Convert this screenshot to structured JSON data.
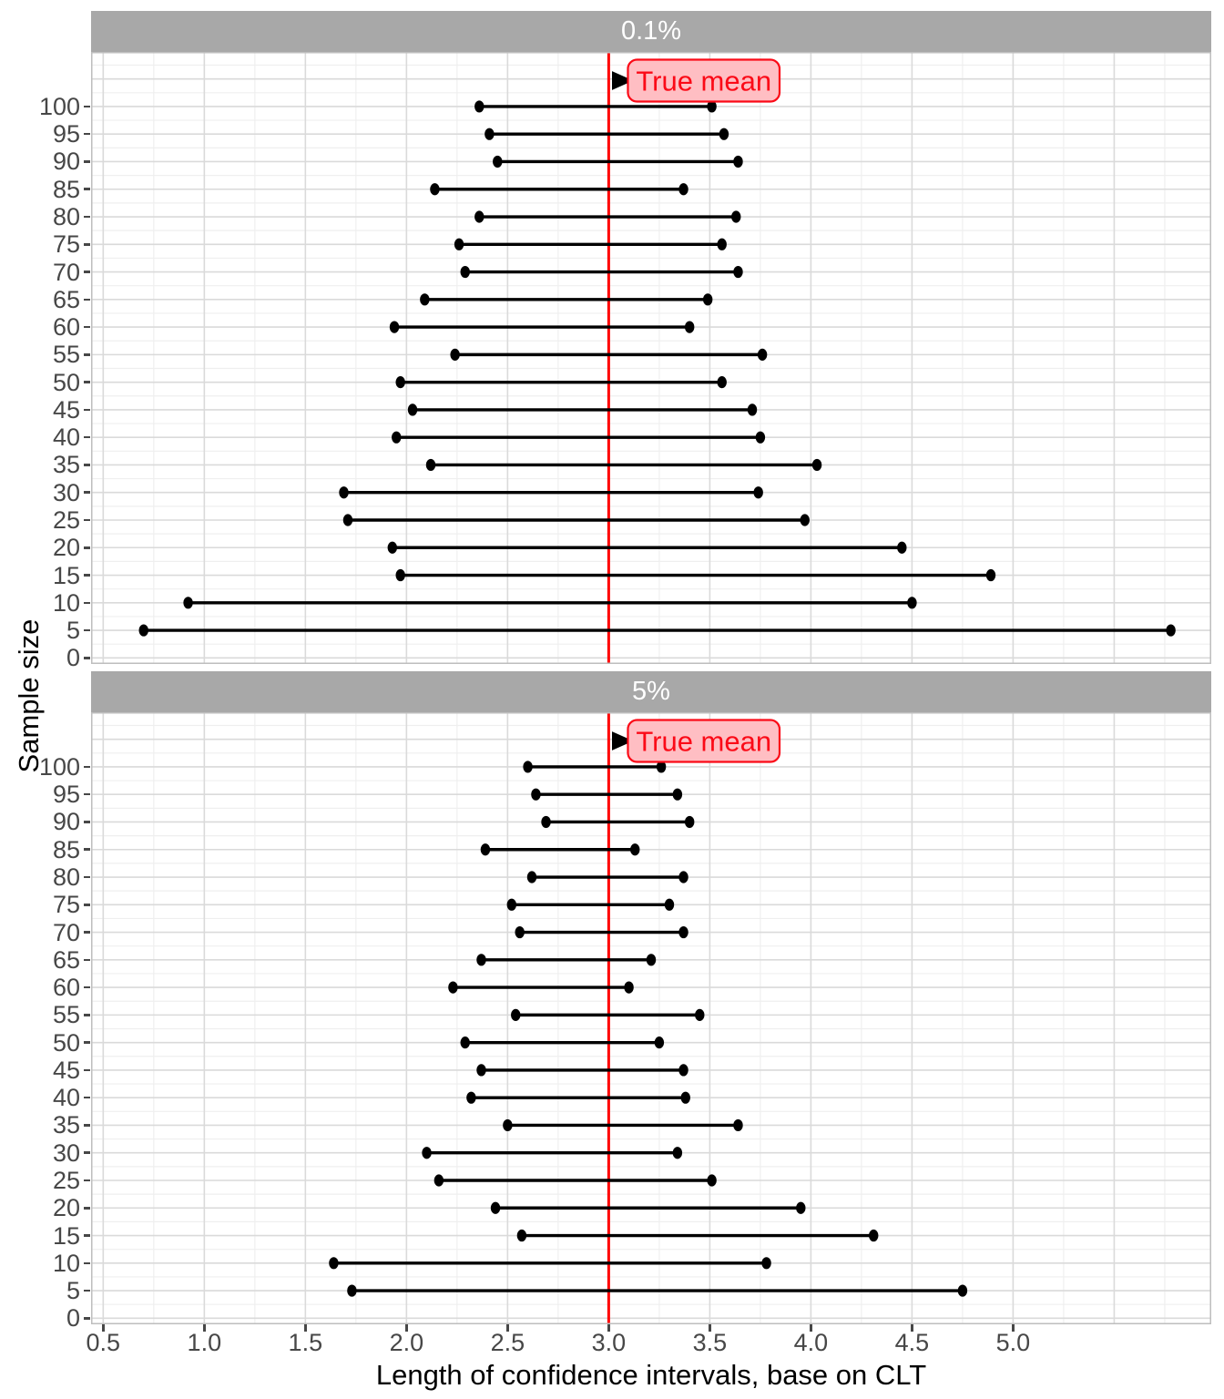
{
  "figure_title": "",
  "chart_data": {
    "type": "dumbbell-interval",
    "xlabel": "Length of confidence intervals, base on CLT",
    "ylabel": "Sample size",
    "legend": "none",
    "grid": "on",
    "xlim": [
      0.44,
      5.98
    ],
    "ylim": [
      -1.1,
      109.9
    ],
    "x_ticks": [
      {
        "v": 0.5,
        "label": "0.5"
      },
      {
        "v": 1.0,
        "label": "1.0"
      },
      {
        "v": 1.5,
        "label": "1.5"
      },
      {
        "v": 2.0,
        "label": "2.0"
      },
      {
        "v": 2.5,
        "label": "2.5"
      },
      {
        "v": 3.0,
        "label": "3.0"
      },
      {
        "v": 3.5,
        "label": "3.5"
      },
      {
        "v": 4.0,
        "label": "4.0"
      },
      {
        "v": 4.5,
        "label": "4.5"
      },
      {
        "v": 5.0,
        "label": "5.0"
      }
    ],
    "y_ticks": [
      {
        "v": 0,
        "label": "0"
      },
      {
        "v": 5,
        "label": "5"
      },
      {
        "v": 10,
        "label": "10"
      },
      {
        "v": 15,
        "label": "15"
      },
      {
        "v": 20,
        "label": "20"
      },
      {
        "v": 25,
        "label": "25"
      },
      {
        "v": 30,
        "label": "30"
      },
      {
        "v": 35,
        "label": "35"
      },
      {
        "v": 40,
        "label": "40"
      },
      {
        "v": 45,
        "label": "45"
      },
      {
        "v": 50,
        "label": "50"
      },
      {
        "v": 55,
        "label": "55"
      },
      {
        "v": 60,
        "label": "60"
      },
      {
        "v": 65,
        "label": "65"
      },
      {
        "v": 70,
        "label": "70"
      },
      {
        "v": 75,
        "label": "75"
      },
      {
        "v": 80,
        "label": "80"
      },
      {
        "v": 85,
        "label": "85"
      },
      {
        "v": 90,
        "label": "90"
      },
      {
        "v": 95,
        "label": "95"
      },
      {
        "v": 100,
        "label": "100"
      }
    ],
    "true_mean": 3.0,
    "annotation": {
      "label": "True mean",
      "points_to": 3.0,
      "y": 104.7
    },
    "facets": [
      {
        "label": "0.1%",
        "intervals": [
          {
            "n": 100,
            "lo": 2.36,
            "hi": 3.51
          },
          {
            "n": 95,
            "lo": 2.41,
            "hi": 3.57
          },
          {
            "n": 90,
            "lo": 2.45,
            "hi": 3.64
          },
          {
            "n": 85,
            "lo": 2.14,
            "hi": 3.37
          },
          {
            "n": 80,
            "lo": 2.36,
            "hi": 3.63
          },
          {
            "n": 75,
            "lo": 2.26,
            "hi": 3.56
          },
          {
            "n": 70,
            "lo": 2.29,
            "hi": 3.64
          },
          {
            "n": 65,
            "lo": 2.09,
            "hi": 3.49
          },
          {
            "n": 60,
            "lo": 1.94,
            "hi": 3.4
          },
          {
            "n": 55,
            "lo": 2.24,
            "hi": 3.76
          },
          {
            "n": 50,
            "lo": 1.97,
            "hi": 3.56
          },
          {
            "n": 45,
            "lo": 2.03,
            "hi": 3.71
          },
          {
            "n": 40,
            "lo": 1.95,
            "hi": 3.75
          },
          {
            "n": 35,
            "lo": 2.12,
            "hi": 4.03
          },
          {
            "n": 30,
            "lo": 1.69,
            "hi": 3.74
          },
          {
            "n": 25,
            "lo": 1.71,
            "hi": 3.97
          },
          {
            "n": 20,
            "lo": 1.93,
            "hi": 4.45
          },
          {
            "n": 15,
            "lo": 1.97,
            "hi": 4.89
          },
          {
            "n": 10,
            "lo": 0.92,
            "hi": 4.5
          },
          {
            "n": 5,
            "lo": 0.7,
            "hi": 5.78
          }
        ]
      },
      {
        "label": "5%",
        "intervals": [
          {
            "n": 100,
            "lo": 2.6,
            "hi": 3.26
          },
          {
            "n": 95,
            "lo": 2.64,
            "hi": 3.34
          },
          {
            "n": 90,
            "lo": 2.69,
            "hi": 3.4
          },
          {
            "n": 85,
            "lo": 2.39,
            "hi": 3.13
          },
          {
            "n": 80,
            "lo": 2.62,
            "hi": 3.37
          },
          {
            "n": 75,
            "lo": 2.52,
            "hi": 3.3
          },
          {
            "n": 70,
            "lo": 2.56,
            "hi": 3.37
          },
          {
            "n": 65,
            "lo": 2.37,
            "hi": 3.21
          },
          {
            "n": 60,
            "lo": 2.23,
            "hi": 3.1
          },
          {
            "n": 55,
            "lo": 2.54,
            "hi": 3.45
          },
          {
            "n": 50,
            "lo": 2.29,
            "hi": 3.25
          },
          {
            "n": 45,
            "lo": 2.37,
            "hi": 3.37
          },
          {
            "n": 40,
            "lo": 2.32,
            "hi": 3.38
          },
          {
            "n": 35,
            "lo": 2.5,
            "hi": 3.64
          },
          {
            "n": 30,
            "lo": 2.1,
            "hi": 3.34
          },
          {
            "n": 25,
            "lo": 2.16,
            "hi": 3.51
          },
          {
            "n": 20,
            "lo": 2.44,
            "hi": 3.95
          },
          {
            "n": 15,
            "lo": 2.57,
            "hi": 4.31
          },
          {
            "n": 10,
            "lo": 1.64,
            "hi": 3.78
          },
          {
            "n": 5,
            "lo": 1.73,
            "hi": 4.75
          }
        ]
      }
    ],
    "colors": {
      "strip_bg": "#A8A8A8",
      "strip_text": "#FFFFFF",
      "true_mean_line": "#FF0000",
      "annotation_fill": "#FFBEC3",
      "annotation_border": "#FB0A17",
      "annotation_text": "#FB0A17",
      "arrow": "#000000",
      "interval": "#000000",
      "grid_major": "#DADADA",
      "grid_minor": "#EFEFEF",
      "panel_border": "#BEBEBE",
      "axis_text": "#474747",
      "panel_bg": "#FFFFFF"
    }
  }
}
